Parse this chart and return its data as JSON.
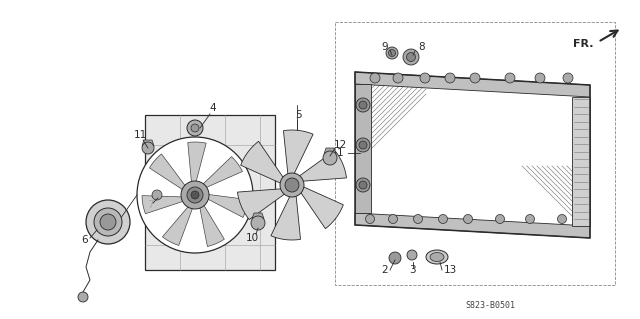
{
  "bg_color": "#ffffff",
  "part_number": "S823-B0501",
  "line_color": "#2a2a2a",
  "gray_fill": "#b0b0b0",
  "light_gray": "#d8d8d8",
  "hatch_color": "#888888"
}
